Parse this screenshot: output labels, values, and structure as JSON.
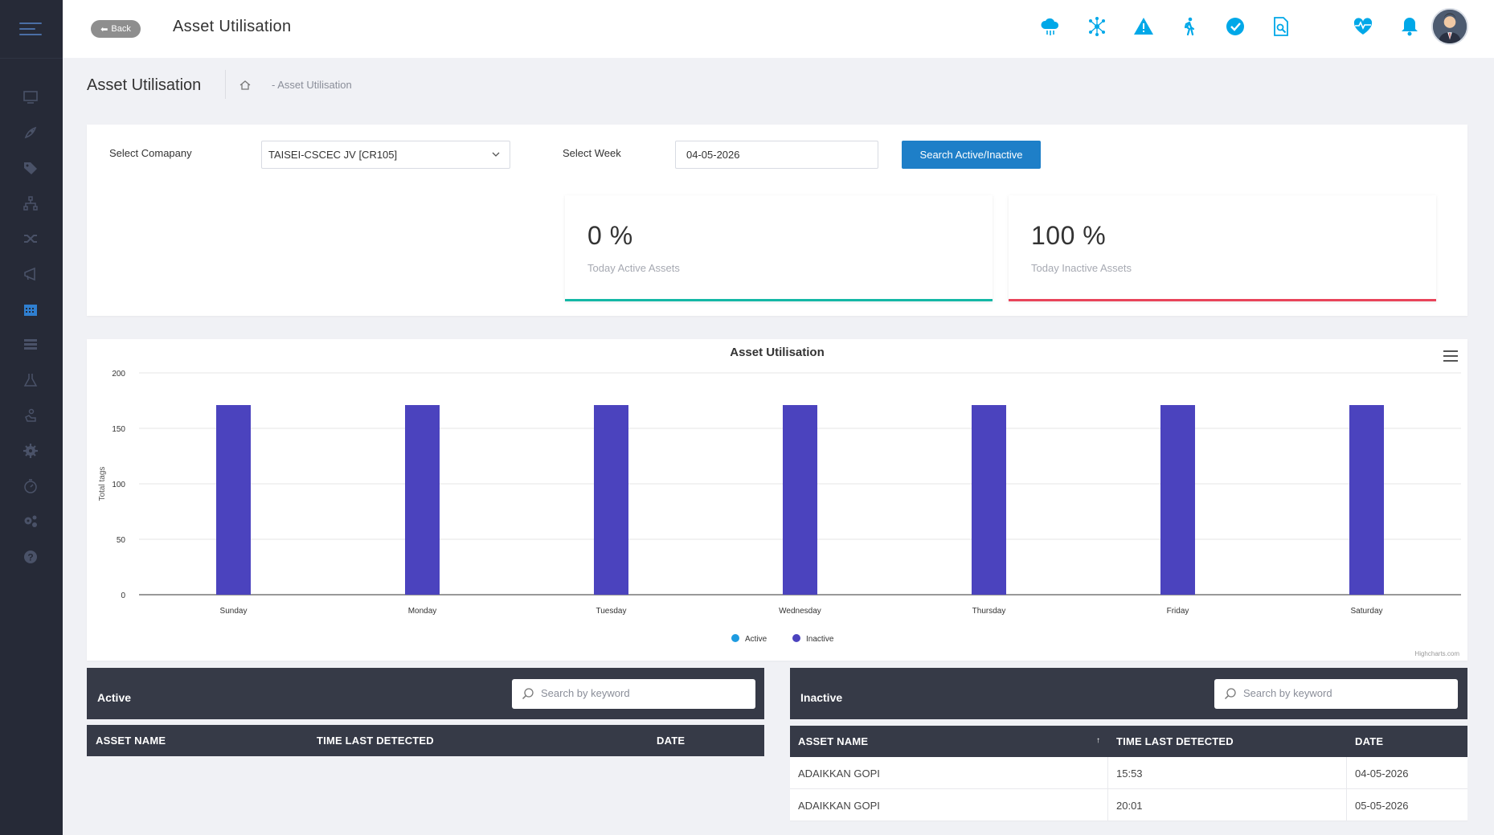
{
  "topbar": {
    "back_label": "Back",
    "title": "Asset Utilisation",
    "icons": [
      "cloud-icon",
      "network-icon",
      "alert-icon",
      "walking-icon",
      "check-circle-icon",
      "report-search-icon",
      "heart-pulse-icon",
      "bell-icon"
    ],
    "accent_color": "#00a8e8"
  },
  "sidebar": {
    "icons": [
      "monitor-icon",
      "rocket-icon",
      "tags-icon",
      "sitemap-icon",
      "shuffle-icon",
      "bullhorn-icon",
      "calendar-icon",
      "list-icon",
      "flask-icon",
      "hand-icon",
      "gear-icon",
      "stopwatch-icon",
      "cogs-icon",
      "help-icon"
    ]
  },
  "page": {
    "title": "Asset Utilisation",
    "breadcrumb": "-  Asset Utilisation"
  },
  "filters": {
    "company_label": "Select Comapany",
    "company_value": "TAISEI-CSCEC JV [CR105]",
    "week_label": "Select Week",
    "week_value": "04-05-2026",
    "search_button": "Search Active/Inactive"
  },
  "stats": [
    {
      "value": "0 %",
      "label": "Today Active Assets",
      "color": "#14b8a6"
    },
    {
      "value": "100 %",
      "label": "Today Inactive Assets",
      "color": "#e9445a"
    }
  ],
  "chart_data": {
    "type": "bar",
    "title": "Asset Utilisation",
    "ylabel": "Total tags",
    "xlabel": "",
    "ylim": [
      0,
      200
    ],
    "yticks": [
      0,
      50,
      100,
      150,
      200
    ],
    "categories": [
      "Sunday",
      "Monday",
      "Tuesday",
      "Wednesday",
      "Thursday",
      "Friday",
      "Saturday"
    ],
    "series": [
      {
        "name": "Active",
        "color": "#1e9be0",
        "values": [
          0,
          0,
          0,
          0,
          0,
          0,
          0
        ]
      },
      {
        "name": "Inactive",
        "color": "#4b43be",
        "values": [
          171,
          171,
          171,
          171,
          171,
          171,
          171
        ]
      }
    ],
    "grid": true,
    "legend": "bottom-center",
    "credits": "Highcharts.com"
  },
  "active_table": {
    "title": "Active",
    "search_placeholder": "Search by keyword",
    "columns": [
      "ASSET NAME",
      "TIME LAST DETECTED",
      "DATE"
    ],
    "rows": []
  },
  "inactive_table": {
    "title": "Inactive",
    "search_placeholder": "Search by keyword",
    "columns": [
      "ASSET NAME",
      "TIME LAST DETECTED",
      "DATE"
    ],
    "sort_indicator": "↑",
    "rows": [
      {
        "name": "ADAIKKAN GOPI",
        "time": "15:53",
        "date": "04-05-2026"
      },
      {
        "name": "ADAIKKAN GOPI",
        "time": "20:01",
        "date": "05-05-2026"
      }
    ]
  }
}
